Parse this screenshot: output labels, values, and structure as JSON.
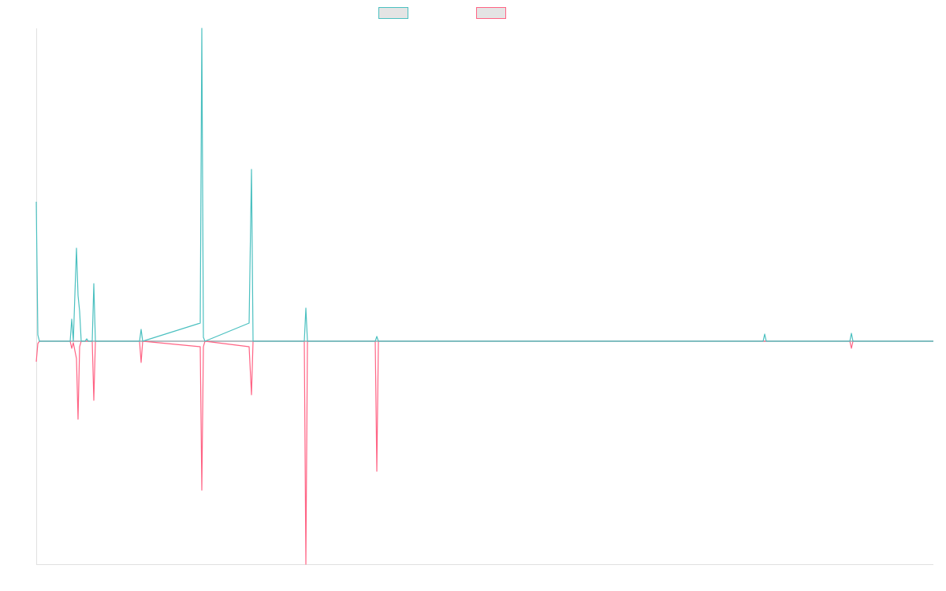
{
  "chart_data": {
    "type": "line",
    "title": "",
    "xlabel": "",
    "ylabel": "",
    "xlim": [
      0,
      1138
    ],
    "ylim": [
      -283,
      397
    ],
    "grid": false,
    "legend_placement": "top-center",
    "series": [
      {
        "name": "",
        "color": "#4bc0c0",
        "points": [
          [
            0,
            177
          ],
          [
            2,
            8
          ],
          [
            4,
            0
          ],
          [
            43,
            0
          ],
          [
            45,
            28
          ],
          [
            47,
            0
          ],
          [
            51,
            118
          ],
          [
            53,
            58
          ],
          [
            55,
            38
          ],
          [
            57,
            0
          ],
          [
            62,
            0
          ],
          [
            64,
            3
          ],
          [
            66,
            0
          ],
          [
            71,
            0
          ],
          [
            73,
            73
          ],
          [
            75,
            0
          ],
          [
            131,
            0
          ],
          [
            133,
            15
          ],
          [
            135,
            0
          ],
          [
            208,
            23
          ],
          [
            210,
            397
          ],
          [
            212,
            5
          ],
          [
            214,
            0
          ],
          [
            270,
            23
          ],
          [
            273,
            218
          ],
          [
            275,
            0
          ],
          [
            340,
            0
          ],
          [
            342,
            42
          ],
          [
            344,
            0
          ],
          [
            430,
            0
          ],
          [
            432,
            6
          ],
          [
            434,
            0
          ],
          [
            922,
            0
          ],
          [
            924,
            9
          ],
          [
            926,
            0
          ],
          [
            1032,
            0
          ],
          [
            1034,
            10
          ],
          [
            1036,
            0
          ],
          [
            1138,
            0
          ]
        ]
      },
      {
        "name": "",
        "color": "#ff6384",
        "points": [
          [
            0,
            -26
          ],
          [
            2,
            -3
          ],
          [
            4,
            0
          ],
          [
            43,
            0
          ],
          [
            45,
            -9
          ],
          [
            47,
            -2
          ],
          [
            51,
            -22
          ],
          [
            53,
            -99
          ],
          [
            55,
            -7
          ],
          [
            57,
            0
          ],
          [
            71,
            0
          ],
          [
            73,
            -75
          ],
          [
            75,
            0
          ],
          [
            131,
            0
          ],
          [
            133,
            -27
          ],
          [
            135,
            0
          ],
          [
            208,
            -7
          ],
          [
            210,
            -189
          ],
          [
            212,
            -7
          ],
          [
            214,
            0
          ],
          [
            270,
            -7
          ],
          [
            273,
            -68
          ],
          [
            275,
            0
          ],
          [
            340,
            0
          ],
          [
            342,
            -283
          ],
          [
            344,
            0
          ],
          [
            430,
            0
          ],
          [
            432,
            -165
          ],
          [
            434,
            0
          ],
          [
            1032,
            0
          ],
          [
            1034,
            -9
          ],
          [
            1036,
            0
          ],
          [
            1138,
            0
          ]
        ]
      }
    ]
  }
}
